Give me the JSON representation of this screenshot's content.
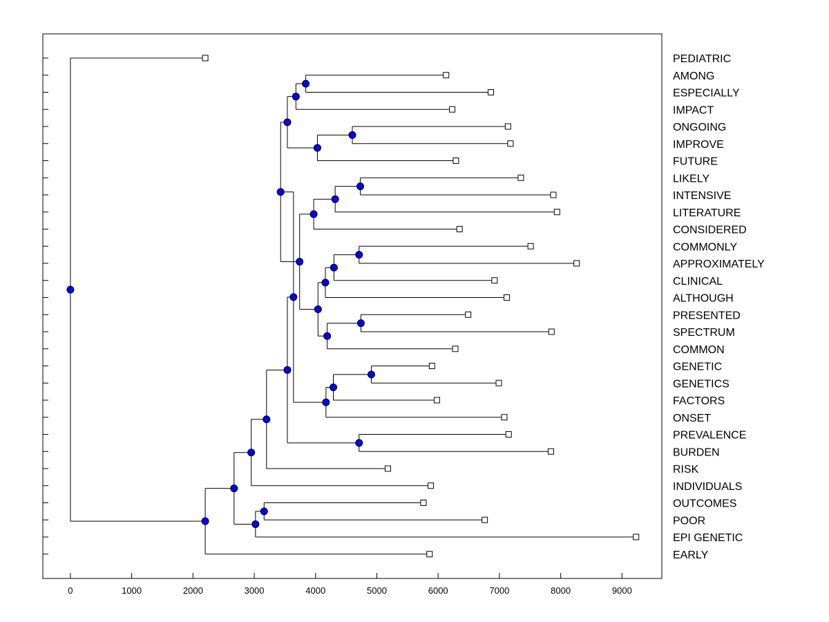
{
  "chart_data": {
    "type": "dendrogram",
    "title": "",
    "xlabel": "",
    "ylabel": "",
    "xlim": [
      -450,
      9650
    ],
    "xticks": [
      0,
      1000,
      2000,
      3000,
      4000,
      5000,
      6000,
      7000,
      8000,
      9000
    ],
    "grid": false,
    "colors": {
      "node": "#0000ff",
      "line": "#000000",
      "leaf_marker": "#ffffff"
    },
    "leaves": [
      {
        "name": "PEDIATRIC",
        "value": 2200
      },
      {
        "name": "AMONG",
        "value": 6130
      },
      {
        "name": "ESPECIALLY",
        "value": 6860
      },
      {
        "name": "IMPACT",
        "value": 6230
      },
      {
        "name": "ONGOING",
        "value": 7140
      },
      {
        "name": "IMPROVE",
        "value": 7180
      },
      {
        "name": "FUTURE",
        "value": 6290
      },
      {
        "name": "LIKELY",
        "value": 7350
      },
      {
        "name": "INTENSIVE",
        "value": 7880
      },
      {
        "name": "LITERATURE",
        "value": 7940
      },
      {
        "name": "CONSIDERED",
        "value": 6350
      },
      {
        "name": "COMMONLY",
        "value": 7510
      },
      {
        "name": "APPROXIMATELY",
        "value": 8260
      },
      {
        "name": "CLINICAL",
        "value": 6920
      },
      {
        "name": "ALTHOUGH",
        "value": 7120
      },
      {
        "name": "PRESENTED",
        "value": 6490
      },
      {
        "name": "SPECTRUM",
        "value": 7850
      },
      {
        "name": "COMMON",
        "value": 6280
      },
      {
        "name": "GENETIC",
        "value": 5900
      },
      {
        "name": "GENETICS",
        "value": 6990
      },
      {
        "name": "FACTORS",
        "value": 5980
      },
      {
        "name": "ONSET",
        "value": 7080
      },
      {
        "name": "PREVALENCE",
        "value": 7150
      },
      {
        "name": "BURDEN",
        "value": 7840
      },
      {
        "name": "RISK",
        "value": 5180
      },
      {
        "name": "INDIVIDUALS",
        "value": 5880
      },
      {
        "name": "OUTCOMES",
        "value": 5760
      },
      {
        "name": "POOR",
        "value": 6760
      },
      {
        "name": "EPI GENETIC",
        "value": 9230
      },
      {
        "name": "EARLY",
        "value": 5860
      }
    ],
    "nodes": [
      {
        "id": "n1",
        "value": 3840,
        "children": [
          "AMONG",
          "ESPECIALLY"
        ]
      },
      {
        "id": "n2",
        "value": 3680,
        "children": [
          "n1",
          "IMPACT"
        ]
      },
      {
        "id": "n3",
        "value": 4600,
        "children": [
          "ONGOING",
          "IMPROVE"
        ]
      },
      {
        "id": "n4",
        "value": 4030,
        "children": [
          "n3",
          "FUTURE"
        ]
      },
      {
        "id": "n5",
        "value": 3540,
        "children": [
          "n2",
          "n4"
        ]
      },
      {
        "id": "n6",
        "value": 4730,
        "children": [
          "LIKELY",
          "INTENSIVE"
        ]
      },
      {
        "id": "n7",
        "value": 4320,
        "children": [
          "n6",
          "LITERATURE"
        ]
      },
      {
        "id": "n8",
        "value": 3970,
        "children": [
          "n7",
          "CONSIDERED"
        ]
      },
      {
        "id": "n9",
        "value": 4710,
        "children": [
          "COMMONLY",
          "APPROXIMATELY"
        ]
      },
      {
        "id": "n10",
        "value": 4300,
        "children": [
          "n9",
          "CLINICAL"
        ]
      },
      {
        "id": "n11",
        "value": 4160,
        "children": [
          "n10",
          "ALTHOUGH"
        ]
      },
      {
        "id": "n12",
        "value": 4740,
        "children": [
          "PRESENTED",
          "SPECTRUM"
        ]
      },
      {
        "id": "n13",
        "value": 4190,
        "children": [
          "n12",
          "COMMON"
        ]
      },
      {
        "id": "n14",
        "value": 4040,
        "children": [
          "n11",
          "n13"
        ]
      },
      {
        "id": "n15",
        "value": 3740,
        "children": [
          "n8",
          "n14"
        ]
      },
      {
        "id": "n16",
        "value": 3430,
        "children": [
          "n5",
          "n15"
        ]
      },
      {
        "id": "n17",
        "value": 4910,
        "children": [
          "GENETIC",
          "GENETICS"
        ]
      },
      {
        "id": "n18",
        "value": 4290,
        "children": [
          "n17",
          "FACTORS"
        ]
      },
      {
        "id": "n19",
        "value": 4170,
        "children": [
          "n18",
          "ONSET"
        ]
      },
      {
        "id": "n20",
        "value": 3640,
        "children": [
          "n16",
          "n19"
        ]
      },
      {
        "id": "n21",
        "value": 4710,
        "children": [
          "PREVALENCE",
          "BURDEN"
        ]
      },
      {
        "id": "n22",
        "value": 3540,
        "children": [
          "n20",
          "n21"
        ]
      },
      {
        "id": "n23",
        "value": 3200,
        "children": [
          "n22",
          "RISK"
        ]
      },
      {
        "id": "n24",
        "value": 2950,
        "children": [
          "n23",
          "INDIVIDUALS"
        ]
      },
      {
        "id": "n25",
        "value": 3160,
        "children": [
          "OUTCOMES",
          "POOR"
        ]
      },
      {
        "id": "n26",
        "value": 3020,
        "children": [
          "n25",
          "EPI GENETIC"
        ]
      },
      {
        "id": "n27",
        "value": 2670,
        "children": [
          "n24",
          "n26"
        ]
      },
      {
        "id": "n28",
        "value": 2200,
        "children": [
          "n27",
          "EARLY"
        ]
      },
      {
        "id": "root",
        "value": 0,
        "children": [
          "PEDIATRIC",
          "n28"
        ]
      }
    ]
  }
}
